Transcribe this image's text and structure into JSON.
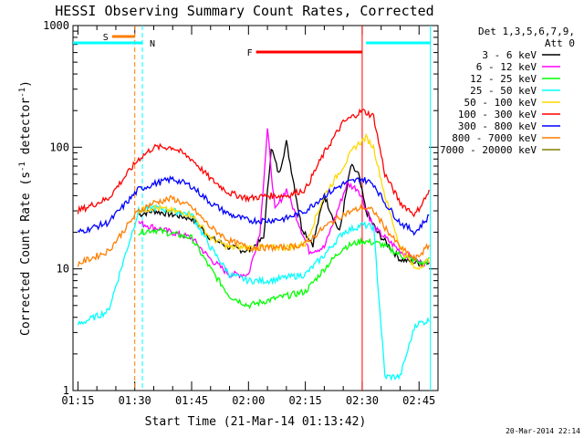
{
  "chart_data": {
    "type": "line",
    "title": "HESSI Observing Summary Count Rates, Corrected",
    "xlabel": "Start Time (21-Mar-14 01:13:42)",
    "ylabel_main": "Corrected Count Rate (s",
    "ylabel_sup1": "-1",
    "ylabel_mid": " detector",
    "ylabel_sup2": "-1",
    "ylabel_end": ")",
    "ylabel_plain": "Corrected Count Rate (s-1 detector-1)",
    "yscale": "log",
    "ylim": [
      1,
      1000
    ],
    "xlim": [
      "01:13:42",
      "02:50:00"
    ],
    "x_ticks": [
      "01:15",
      "01:30",
      "01:45",
      "02:00",
      "02:15",
      "02:30",
      "02:45"
    ],
    "y_ticks": [
      "1",
      "10",
      "100",
      "1000"
    ],
    "legend_header": [
      "Det 1,3,5,6,7,9,",
      "Att 0"
    ],
    "legend_placement": "right",
    "date_stamp": "20-Mar-2014 22:14",
    "annotations": [
      {
        "label": "S",
        "color": "#ff7f00",
        "from": "01:24",
        "to": "01:30"
      },
      {
        "label": "N",
        "color": "#00ffff",
        "from": "01:13:42",
        "to": "01:32"
      },
      {
        "label": "F",
        "color": "#ff0000",
        "from": "02:02",
        "to": "02:30"
      },
      {
        "label": "",
        "color": "#00ffff",
        "from": "02:31",
        "to": "02:48"
      }
    ],
    "series": [
      {
        "name": "3 - 6 keV",
        "color": "#000000",
        "x": [
          "01:15",
          "01:22",
          "01:31",
          "01:35",
          "01:45",
          "01:50",
          "01:55",
          "02:00",
          "02:04",
          "02:06",
          "02:08",
          "02:10",
          "02:12",
          "02:14",
          "02:17",
          "02:20",
          "02:24",
          "02:27",
          "02:29",
          "02:31",
          "02:34",
          "02:40",
          "02:46",
          "02:48"
        ],
        "values": [
          null,
          null,
          28,
          30,
          26,
          18,
          15,
          14,
          18,
          100,
          60,
          110,
          50,
          22,
          16,
          40,
          20,
          70,
          60,
          30,
          20,
          12,
          11,
          12
        ]
      },
      {
        "name": "6 - 12 keV",
        "color": "#ff00ff",
        "x": [
          "01:31",
          "01:35",
          "01:45",
          "01:50",
          "01:55",
          "02:00",
          "02:03",
          "02:05",
          "02:07",
          "02:10",
          "02:13",
          "02:16",
          "02:20",
          "02:26",
          "02:29",
          "02:33",
          "02:40",
          "02:46",
          "02:48"
        ],
        "values": [
          24,
          22,
          18,
          12,
          9,
          9,
          20,
          140,
          30,
          45,
          25,
          14,
          15,
          50,
          45,
          22,
          14,
          11,
          12
        ]
      },
      {
        "name": "12 - 25 keV",
        "color": "#00ff00",
        "x": [
          "01:31",
          "01:35",
          "01:45",
          "01:50",
          "01:55",
          "02:00",
          "02:05",
          "02:10",
          "02:15",
          "02:20",
          "02:25",
          "02:30",
          "02:35",
          "02:40",
          "02:46",
          "02:48"
        ],
        "values": [
          20,
          21,
          18,
          10,
          6,
          5,
          5.5,
          6,
          6.5,
          10,
          15,
          17,
          16,
          13,
          11,
          12
        ]
      },
      {
        "name": "25 - 50 keV",
        "color": "#00ffff",
        "x": [
          "01:15",
          "01:23",
          "01:31",
          "01:35",
          "01:45",
          "01:50",
          "01:55",
          "02:00",
          "02:05",
          "02:10",
          "02:15",
          "02:20",
          "02:25",
          "02:30",
          "02:33",
          "02:36",
          "02:40",
          "02:44",
          "02:48"
        ],
        "values": [
          3.5,
          4.5,
          30,
          32,
          28,
          15,
          9,
          8,
          8,
          8.5,
          9,
          13,
          20,
          23,
          22,
          1.3,
          1.3,
          3.5,
          3.8
        ]
      },
      {
        "name": "50 - 100 keV",
        "color": "#ffd700",
        "x": [
          "01:31",
          "01:35",
          "01:45",
          "01:50",
          "01:55",
          "02:00",
          "02:05",
          "02:10",
          "02:15",
          "02:20",
          "02:25",
          "02:28",
          "02:31",
          "02:33",
          "02:36",
          "02:40",
          "02:44",
          "02:48"
        ],
        "values": [
          30,
          32,
          28,
          18,
          15,
          15,
          15,
          15,
          16,
          40,
          70,
          100,
          120,
          100,
          40,
          15,
          10,
          12
        ]
      },
      {
        "name": "100 - 300 keV",
        "color": "#ff0000",
        "x": [
          "01:15",
          "01:23",
          "01:31",
          "01:35",
          "01:40",
          "01:45",
          "01:50",
          "01:55",
          "02:00",
          "02:05",
          "02:10",
          "02:15",
          "02:20",
          "02:25",
          "02:30",
          "02:33",
          "02:36",
          "02:40",
          "02:44",
          "02:48"
        ],
        "values": [
          30,
          38,
          80,
          100,
          100,
          80,
          55,
          42,
          38,
          40,
          40,
          45,
          90,
          160,
          200,
          180,
          60,
          35,
          28,
          45
        ]
      },
      {
        "name": "300 - 800 keV",
        "color": "#0000ff",
        "x": [
          "01:15",
          "01:23",
          "01:31",
          "01:35",
          "01:40",
          "01:45",
          "01:50",
          "01:55",
          "02:00",
          "02:05",
          "02:10",
          "02:15",
          "02:20",
          "02:25",
          "02:30",
          "02:33",
          "02:36",
          "02:40",
          "02:44",
          "02:48"
        ],
        "values": [
          20,
          24,
          45,
          50,
          55,
          48,
          35,
          28,
          25,
          25,
          26,
          30,
          40,
          50,
          55,
          50,
          35,
          24,
          20,
          28
        ]
      },
      {
        "name": "800 - 7000 keV",
        "color": "#ff7f00",
        "x": [
          "01:15",
          "01:23",
          "01:31",
          "01:35",
          "01:40",
          "01:45",
          "01:50",
          "01:55",
          "02:00",
          "02:05",
          "02:10",
          "02:15",
          "02:20",
          "02:25",
          "02:30",
          "02:33",
          "02:36",
          "02:40",
          "02:44",
          "02:48"
        ],
        "values": [
          11,
          14,
          30,
          35,
          38,
          32,
          22,
          17,
          15,
          15,
          15,
          16,
          22,
          28,
          32,
          30,
          22,
          15,
          12,
          16
        ]
      },
      {
        "name": "7000 - 20000 keV",
        "color": "#808000",
        "x": [],
        "values": []
      }
    ]
  }
}
